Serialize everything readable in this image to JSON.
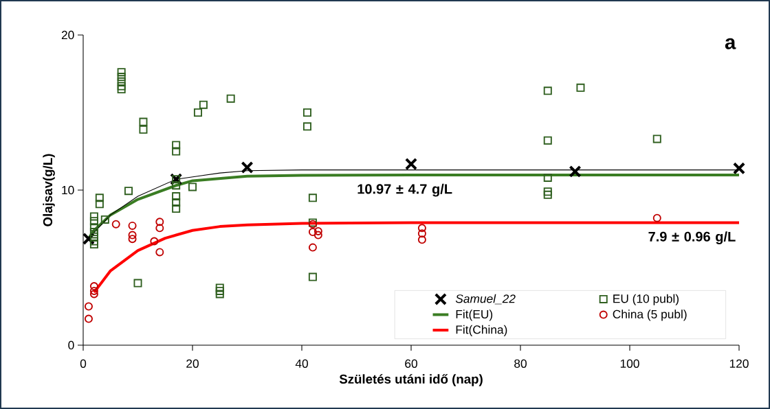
{
  "chart_data": {
    "type": "scatter",
    "xlabel": "Születés utáni idő (nap)",
    "ylabel": "Olajsav(g/L)",
    "xlim": [
      0,
      120
    ],
    "xticks": [
      0,
      20,
      40,
      60,
      80,
      100,
      120
    ],
    "ylim": [
      0,
      20
    ],
    "yticks": [
      0,
      10,
      20
    ],
    "legend": "bottom right",
    "annotations": [
      "a",
      {
        "text": "10.97 ± 4.7 g/L",
        "x": 49.5,
        "y": 10.97
      },
      {
        "text": "7.9 ± 0.96 g/L",
        "x": 120,
        "y": 7.9
      }
    ],
    "series": [
      {
        "name": "*Samuel_22*",
        "marker": "cross",
        "color": "#000000",
        "x": [
          1,
          17,
          30,
          60,
          90,
          120
        ],
        "values": [
          6.86,
          10.7,
          11.46,
          11.68,
          11.2,
          11.4
        ]
      },
      {
        "name": "EU (10 publ)",
        "marker": "square",
        "color": "#2f5f1f",
        "x": [
          7,
          7,
          7,
          7,
          7,
          11,
          11,
          17,
          17,
          17,
          17,
          17,
          17,
          17,
          8.3,
          20,
          3,
          3,
          4,
          2,
          2,
          2,
          2,
          2,
          2,
          2,
          10,
          21,
          22,
          27,
          41,
          41,
          42,
          42,
          42,
          25,
          25,
          25,
          85,
          91,
          85,
          105,
          85,
          85,
          85
        ],
        "values": [
          17.6,
          17.3,
          17.0,
          16.7,
          16.5,
          14.4,
          13.9,
          12.9,
          12.5,
          10.7,
          10.3,
          9.6,
          9.2,
          8.8,
          9.95,
          10.2,
          9.5,
          9.1,
          8.1,
          8.3,
          8.0,
          7.6,
          7.3,
          7.0,
          6.7,
          6.5,
          4.0,
          15.0,
          15.5,
          15.9,
          15.0,
          14.1,
          9.5,
          7.9,
          4.4,
          3.7,
          3.5,
          3.3,
          16.4,
          16.6,
          13.2,
          13.3,
          10.8,
          9.9,
          9.7
        ]
      },
      {
        "name": "Fit(EU)",
        "type": "line",
        "marker": "none",
        "line_style": "solid",
        "color": "#3a7d23",
        "x": [
          1,
          2,
          5,
          10,
          17,
          20,
          30,
          40,
          60,
          120
        ],
        "values": [
          6.9,
          7.4,
          8.4,
          9.4,
          10.3,
          10.6,
          10.9,
          10.95,
          10.97,
          10.97
        ]
      },
      {
        "name": "China (5 publ)",
        "marker": "circle",
        "color": "#c00000",
        "x": [
          1,
          1,
          2,
          2,
          2,
          6,
          9,
          9,
          9,
          13,
          14,
          14,
          14,
          42,
          42,
          43,
          43,
          42,
          62,
          62,
          62,
          105
        ],
        "values": [
          2.5,
          1.7,
          3.8,
          3.5,
          3.3,
          7.8,
          7.7,
          7.1,
          6.85,
          6.7,
          7.95,
          7.55,
          6.0,
          7.8,
          7.3,
          7.35,
          7.1,
          6.3,
          7.55,
          7.2,
          6.8,
          8.2
        ]
      },
      {
        "name": "Fit(China)",
        "type": "line",
        "marker": "none",
        "line_style": "solid",
        "color": "#ff0000",
        "x": [
          2,
          5,
          10,
          15,
          20,
          25,
          30,
          40,
          60,
          120
        ],
        "values": [
          3.4,
          4.8,
          6.1,
          6.9,
          7.4,
          7.65,
          7.75,
          7.85,
          7.9,
          7.9
        ]
      },
      {
        "type": "line",
        "marker": "none",
        "line_style": "solid",
        "color": "#000000",
        "x": [
          1,
          5,
          10,
          17,
          25,
          30,
          40,
          60,
          90,
          120
        ],
        "values": [
          6.9,
          8.4,
          9.6,
          10.7,
          11.1,
          11.25,
          11.3,
          11.3,
          11.3,
          11.3
        ]
      }
    ]
  }
}
